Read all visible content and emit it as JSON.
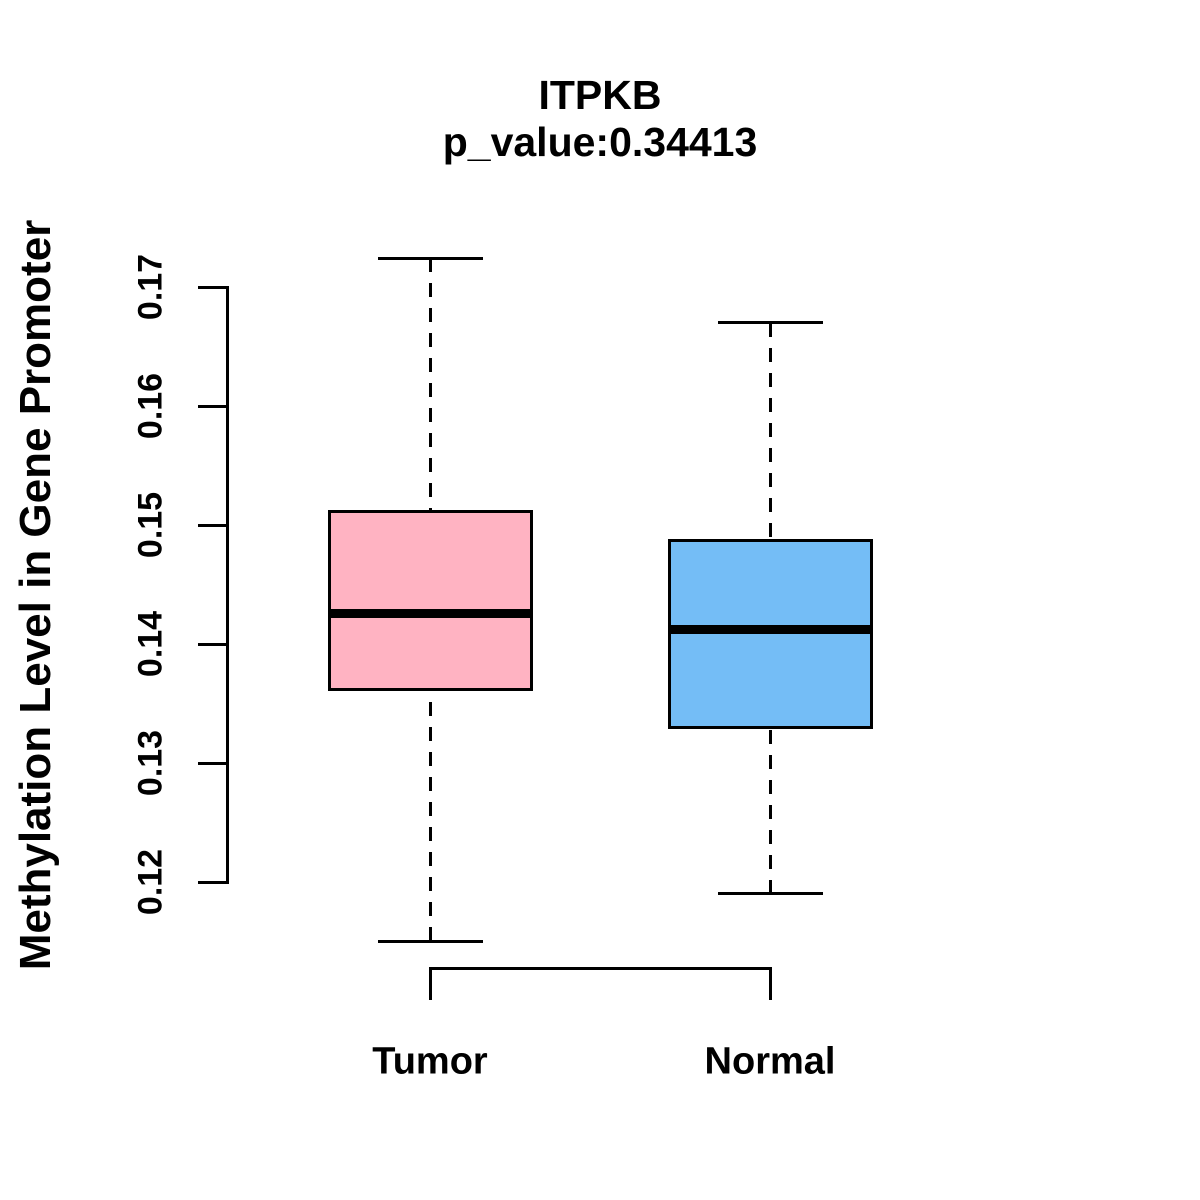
{
  "title": "ITPKB",
  "subtitle": "p_value:0.34413",
  "colors": {
    "tumor_fill": "#FFB3C2",
    "normal_fill": "#74BDF6",
    "line": "#000000",
    "background": "#FFFFFF"
  },
  "chart_data": {
    "type": "boxplot",
    "title": "ITPKB",
    "subtitle": "p_value:0.34413",
    "ylabel": "Methylation Level in Gene Promoter",
    "xlabel": "",
    "categories": [
      "Tumor",
      "Normal"
    ],
    "yticks": [
      0.12,
      0.13,
      0.14,
      0.15,
      0.16,
      0.17
    ],
    "ylim": [
      0.113,
      0.174
    ],
    "grid": false,
    "legend": "none",
    "series": [
      {
        "name": "Tumor",
        "color": "#FFB3C2",
        "whisker_low": 0.115,
        "q1": 0.1362,
        "median": 0.1426,
        "q3": 0.1511,
        "whisker_high": 0.1724,
        "outliers": []
      },
      {
        "name": "Normal",
        "color": "#74BDF6",
        "whisker_low": 0.119,
        "q1": 0.133,
        "median": 0.1412,
        "q3": 0.1487,
        "whisker_high": 0.167,
        "outliers": []
      }
    ]
  }
}
